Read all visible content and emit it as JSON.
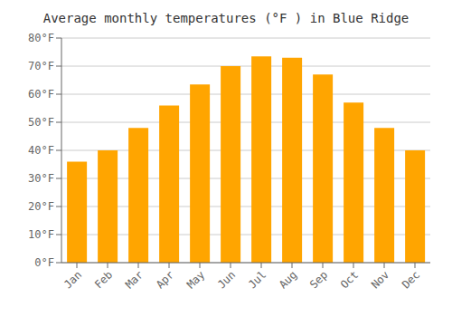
{
  "chart_data": {
    "type": "bar",
    "title": "Average monthly temperatures (°F ) in Blue Ridge",
    "categories": [
      "Jan",
      "Feb",
      "Mar",
      "Apr",
      "May",
      "Jun",
      "Jul",
      "Aug",
      "Sep",
      "Oct",
      "Nov",
      "Dec"
    ],
    "values": [
      36,
      40,
      48,
      56,
      63.5,
      70,
      73.5,
      73,
      67,
      57,
      48,
      40
    ],
    "color": "#FFA500",
    "ylim": [
      0,
      80
    ],
    "yticks": [
      {
        "value": 0,
        "label": "0°F"
      },
      {
        "value": 10,
        "label": "10°F"
      },
      {
        "value": 20,
        "label": "20°F"
      },
      {
        "value": 30,
        "label": "30°F"
      },
      {
        "value": 40,
        "label": "40°F"
      },
      {
        "value": 50,
        "label": "50°F"
      },
      {
        "value": 60,
        "label": "60°F"
      },
      {
        "value": 70,
        "label": "70°F"
      },
      {
        "value": 80,
        "label": "80°F"
      }
    ],
    "grid": true
  }
}
